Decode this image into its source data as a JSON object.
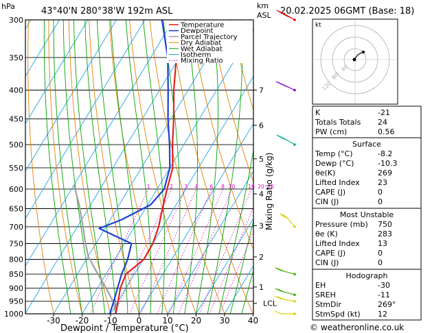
{
  "header": {
    "location": "43°40'N  280°38'W  192m  ASL",
    "datetime": "20.02.2025  06GMT  (Base: 18)",
    "hpa_unit": "hPa",
    "km_unit": "km",
    "asl_unit": "ASL"
  },
  "colors": {
    "temperature": "#e02020",
    "dewpoint": "#1c3fd6",
    "parcel": "#a0a0a0",
    "dry_adiabat": "#e08000",
    "wet_adiabat": "#00a000",
    "isotherm": "#1aa3e8",
    "mixing_ratio": "#e000c0",
    "wind_red": "#e00000",
    "wind_purple": "#8000c0",
    "wind_teal": "#00b090",
    "wind_yellow": "#d8d000",
    "wind_green": "#40b000"
  },
  "chart_data": {
    "type": "line",
    "xlabel": "Dewpoint / Temperature (°C)",
    "ylabel": "hPa",
    "y_right_label": "Mixing Ratio (g/kg)",
    "x_ticks": [
      -30,
      -20,
      -10,
      0,
      10,
      20,
      30,
      40
    ],
    "y_scale": "log",
    "xlim": [
      -40,
      40
    ],
    "ylim": [
      1000,
      300
    ],
    "pressure_levels": [
      300,
      350,
      400,
      450,
      500,
      550,
      600,
      650,
      700,
      750,
      800,
      850,
      900,
      950,
      1000
    ],
    "km_ticks": [
      {
        "label": "7",
        "p": 400
      },
      {
        "label": "6",
        "p": 462
      },
      {
        "label": "5",
        "p": 530
      },
      {
        "label": "4",
        "p": 612
      },
      {
        "label": "3",
        "p": 697
      },
      {
        "label": "2",
        "p": 792
      },
      {
        "label": "1",
        "p": 896
      },
      {
        "label": "LCL",
        "p": 958
      }
    ],
    "mixing_ratio_labels": [
      "1",
      "2",
      "3",
      "4",
      "6",
      "8",
      "10",
      "16",
      "20",
      "25"
    ],
    "mixing_ratio_values": [
      1,
      2,
      3,
      4,
      6,
      8,
      10,
      16,
      20,
      25
    ],
    "legend": [
      "Temperature",
      "Dewpoint",
      "Parcel Trajectory",
      "Dry Adiabat",
      "Wet Adiabat",
      "Isotherm",
      "Mixing Ratio"
    ],
    "series": [
      {
        "name": "Temperature",
        "points": [
          [
            -8.2,
            1000
          ],
          [
            -10,
            950
          ],
          [
            -12,
            900
          ],
          [
            -13,
            850
          ],
          [
            -9.8,
            800
          ],
          [
            -10,
            750
          ],
          [
            -11.5,
            700
          ],
          [
            -14,
            650
          ],
          [
            -16.5,
            600
          ],
          [
            -19,
            550
          ],
          [
            -24,
            500
          ],
          [
            -29,
            450
          ],
          [
            -35,
            400
          ],
          [
            -41,
            350
          ],
          [
            -46,
            300
          ]
        ]
      },
      {
        "name": "Dewpoint",
        "points": [
          [
            -10.3,
            1000
          ],
          [
            -11.5,
            950
          ],
          [
            -13,
            900
          ],
          [
            -14.5,
            850
          ],
          [
            -15.5,
            800
          ],
          [
            -17.5,
            750
          ],
          [
            -32,
            705
          ],
          [
            -26,
            680
          ],
          [
            -19,
            640
          ],
          [
            -17.5,
            600
          ],
          [
            -20,
            550
          ],
          [
            -25,
            500
          ],
          [
            -31,
            450
          ],
          [
            -37,
            400
          ],
          [
            -44,
            350
          ],
          [
            -54,
            300
          ]
        ]
      },
      {
        "name": "Parcel Trajectory",
        "points": [
          [
            -8.2,
            1000
          ],
          [
            -11,
            958
          ],
          [
            -17,
            900
          ],
          [
            -24,
            840
          ],
          [
            -30,
            790
          ],
          [
            -34.5,
            740
          ],
          [
            -39,
            690
          ],
          [
            -44,
            640
          ],
          [
            -50,
            590
          ]
        ]
      }
    ]
  },
  "hodograph": {
    "unit_label": "kt",
    "ring_labels": [
      "40",
      "80",
      "120"
    ]
  },
  "indices": {
    "top": [
      {
        "label": "K",
        "value": "-21"
      },
      {
        "label": "Totals Totals",
        "value": "24"
      },
      {
        "label": "PW (cm)",
        "value": "0.56"
      }
    ],
    "surface": {
      "title": "Surface",
      "rows": [
        {
          "label": "Temp (°C)",
          "value": "-8.2"
        },
        {
          "label": "Dewp (°C)",
          "value": "-10.3"
        },
        {
          "label": "θe(K)",
          "value": "269"
        },
        {
          "label": "Lifted Index",
          "value": "23"
        },
        {
          "label": "CAPE (J)",
          "value": "0"
        },
        {
          "label": "CIN (J)",
          "value": "0"
        }
      ]
    },
    "most_unstable": {
      "title": "Most Unstable",
      "rows": [
        {
          "label": "Pressure (mb)",
          "value": "750"
        },
        {
          "label": "θe (K)",
          "value": "283"
        },
        {
          "label": "Lifted Index",
          "value": "13"
        },
        {
          "label": "CAPE (J)",
          "value": "0"
        },
        {
          "label": "CIN (J)",
          "value": "0"
        }
      ]
    },
    "hodograph": {
      "title": "Hodograph",
      "rows": [
        {
          "label": "EH",
          "value": "-30"
        },
        {
          "label": "SREH",
          "value": "-11"
        },
        {
          "label": "StmDir",
          "value": "269°"
        },
        {
          "label": "StmSpd (kt)",
          "value": "12"
        }
      ]
    }
  },
  "footer": {
    "copyright": "© weatheronline.co.uk"
  }
}
